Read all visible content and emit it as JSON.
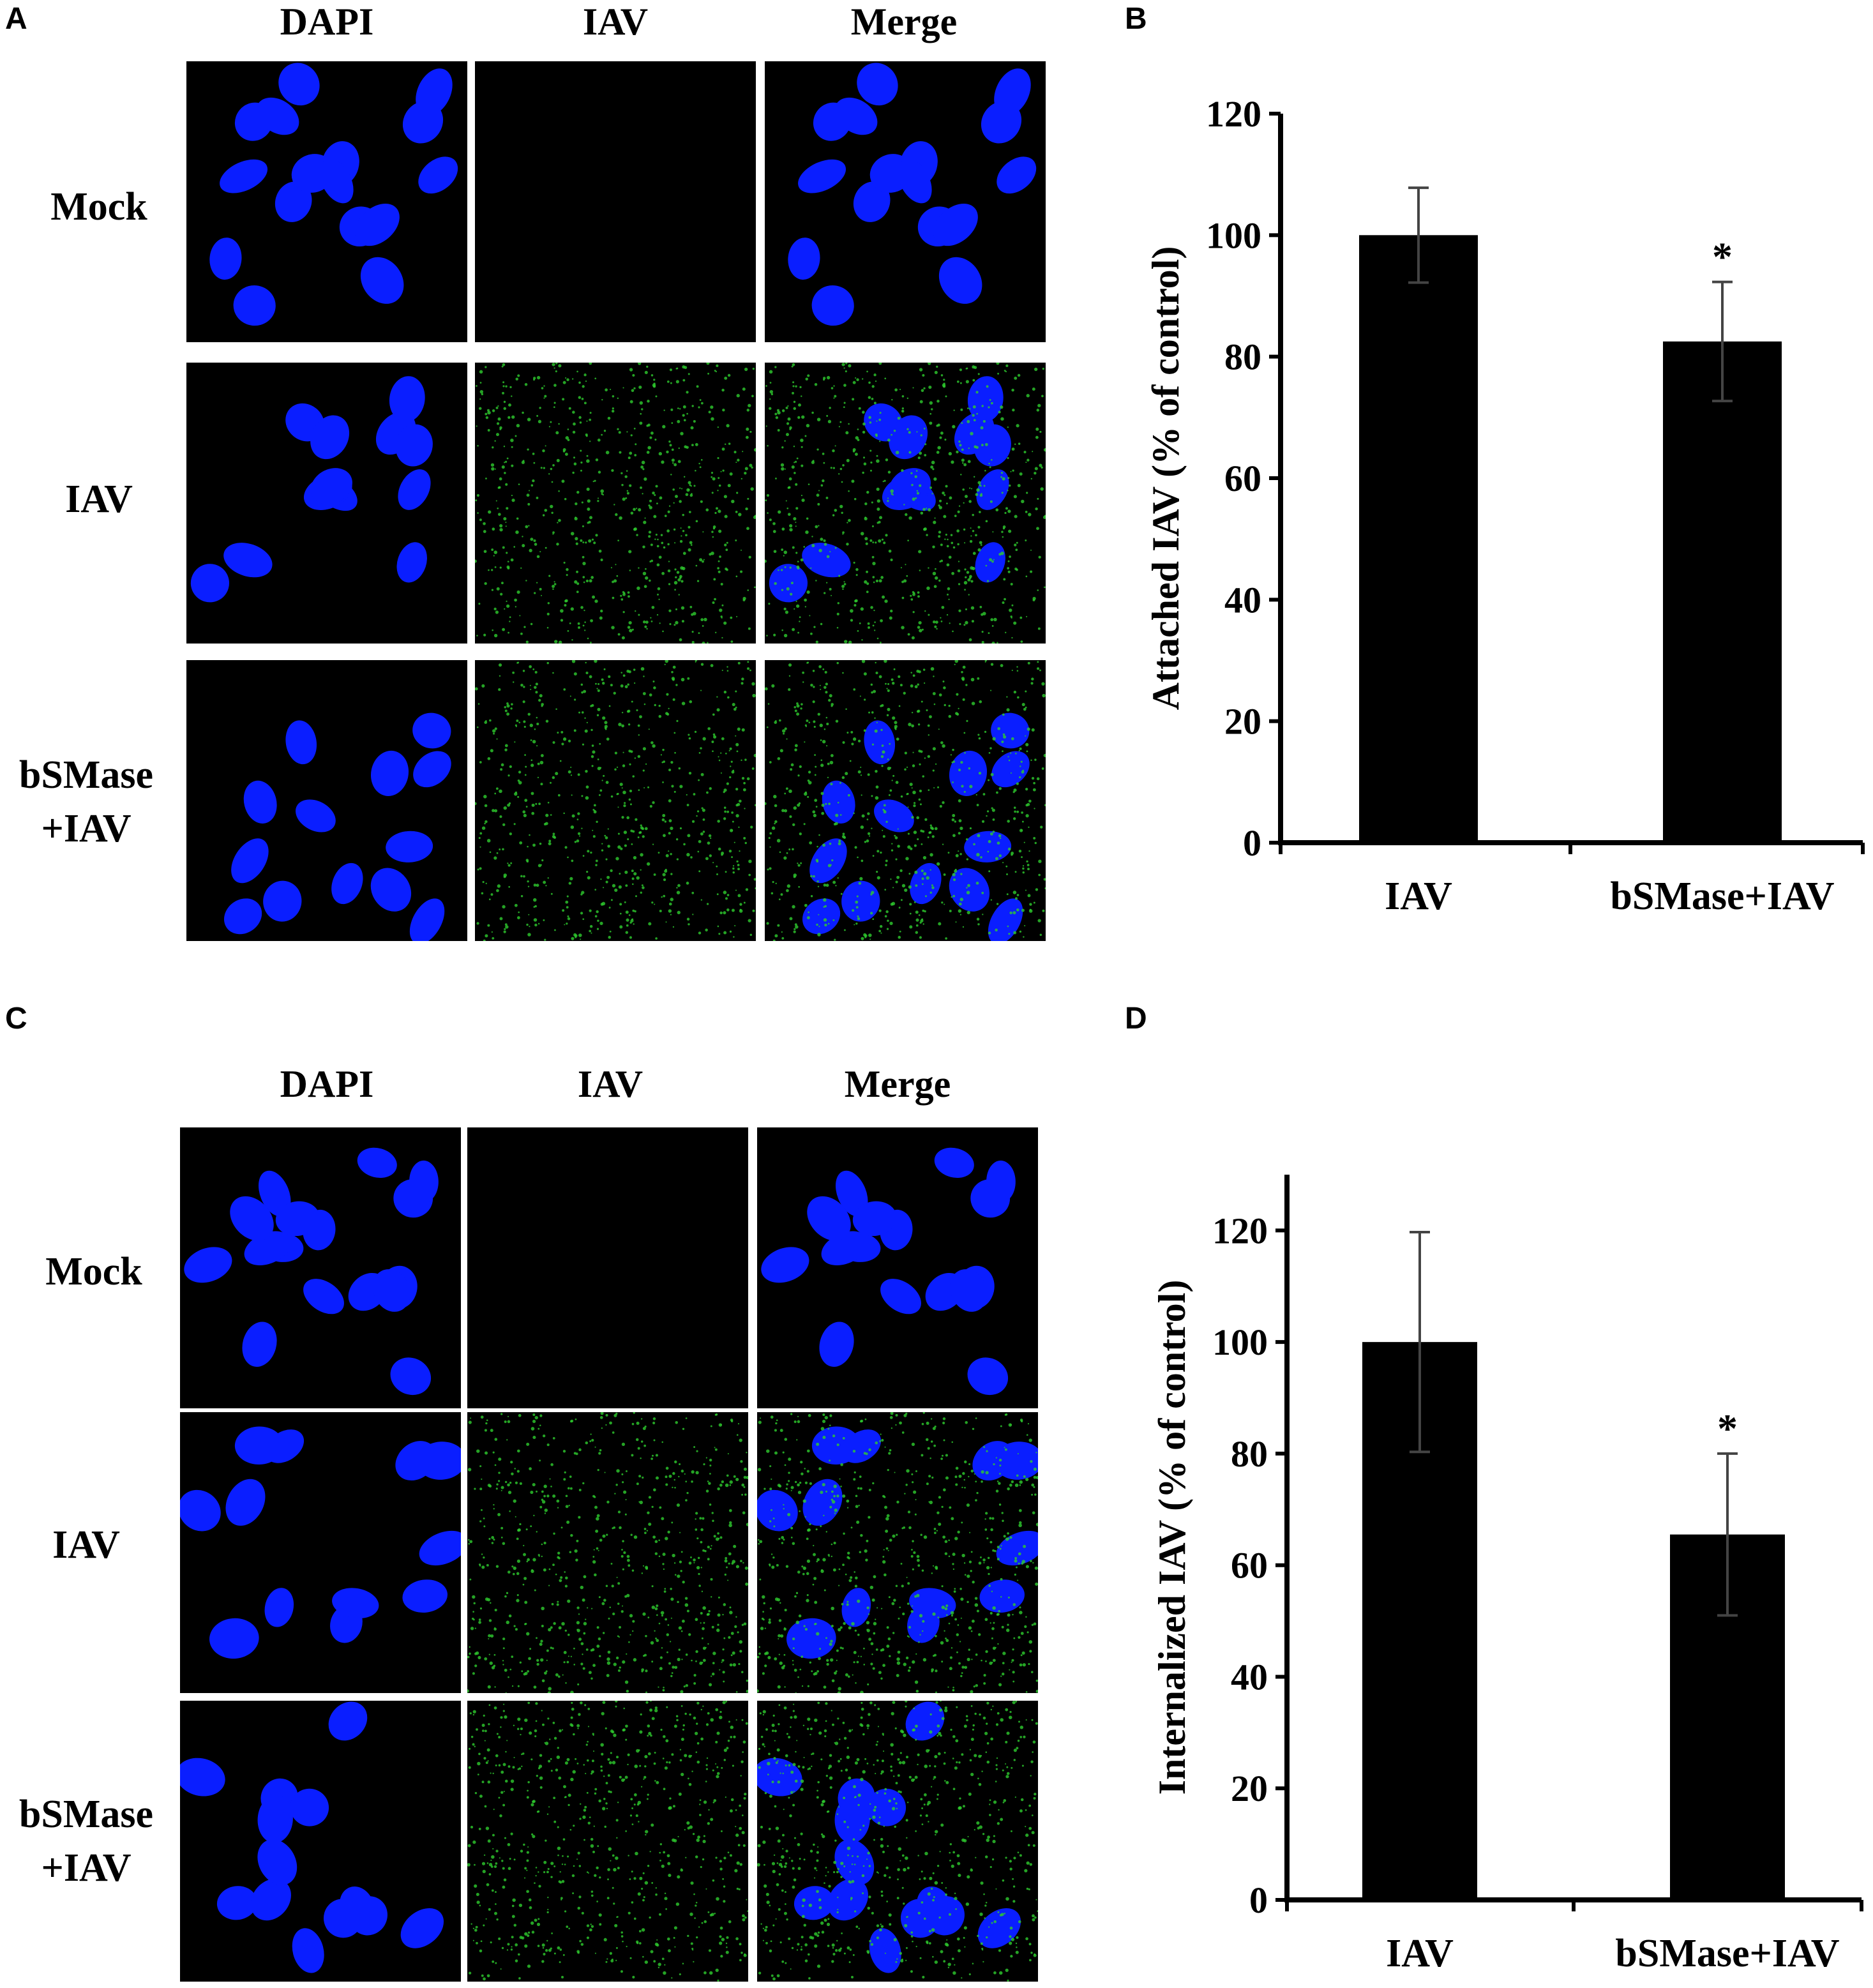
{
  "panels": [
    {
      "letter": "A",
      "columns": [
        "DAPI",
        "IAV",
        "Merge"
      ],
      "rows": [
        [
          "Mock"
        ],
        [
          "IAV"
        ],
        [
          "bSMase",
          "+IAV"
        ]
      ]
    },
    {
      "letter": "B"
    },
    {
      "letter": "C",
      "columns": [
        "DAPI",
        "IAV",
        "Merge"
      ],
      "rows": [
        [
          "Mock"
        ],
        [
          "IAV"
        ],
        [
          "bSMase",
          "+IAV"
        ]
      ]
    },
    {
      "letter": "D"
    }
  ],
  "colors": {
    "nucleus": "#0a1eff",
    "iav_signal": "#2ecc2e",
    "bar": "#000000",
    "background": "#ffffff",
    "image_background": "#000000"
  },
  "chart_data": [
    {
      "type": "bar",
      "categories": [
        "IAV",
        "bSMase+IAV"
      ],
      "values": [
        100,
        82.5
      ],
      "errors": [
        7.8,
        9.8
      ],
      "significance": [
        "",
        "*"
      ],
      "ylabel": "Attached IAV (% of control)",
      "yticks": [
        "0",
        "20",
        "40",
        "60",
        "80",
        "100",
        "120"
      ],
      "ylim": [
        0,
        120
      ]
    },
    {
      "type": "bar",
      "categories": [
        "IAV",
        "bSMase+IAV"
      ],
      "values": [
        100,
        65.5
      ],
      "errors": [
        19.7,
        14.5
      ],
      "significance": [
        "",
        "*"
      ],
      "ylabel": "Internalized IAV (% of control)",
      "yticks": [
        "0",
        "20",
        "40",
        "60",
        "80",
        "100",
        "120"
      ],
      "ylim": [
        0,
        130
      ]
    }
  ]
}
